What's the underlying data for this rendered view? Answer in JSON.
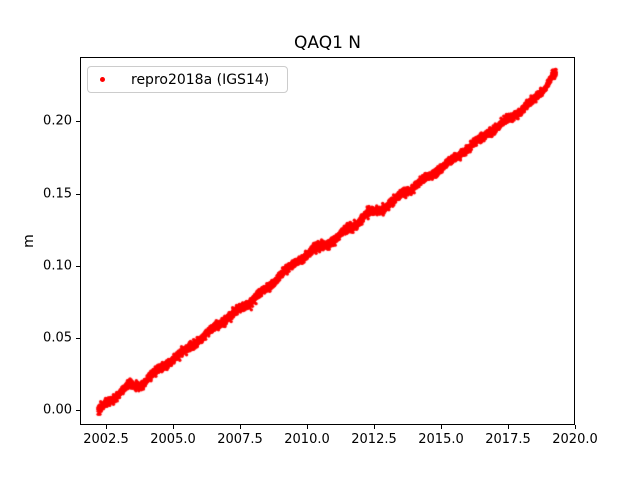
{
  "window": {
    "background": "#ffffff"
  },
  "title": "QAQ1 N",
  "ylabel": "m",
  "colors": {
    "series": "#ff0000",
    "frame": "#000000",
    "text": "#000000",
    "legend_border": "#cccccc",
    "legend_background": "#ffffff"
  },
  "legend": {
    "position": "upper left",
    "entries": [
      {
        "label": "repro2018a (IGS14)",
        "marker": "red-dot",
        "color": "#ff0000"
      }
    ]
  },
  "chart_data": {
    "type": "scatter",
    "title": "QAQ1 N",
    "xlabel": "",
    "ylabel": "m",
    "grid": false,
    "legend_position": "upper left",
    "xlim": [
      2001.53,
      2020.0
    ],
    "ylim": [
      -0.0103,
      0.2445
    ],
    "x_ticks": [
      2002.5,
      2005.0,
      2007.5,
      2010.0,
      2012.5,
      2015.0,
      2017.5,
      2020.0
    ],
    "x_tick_labels": [
      "2002.5",
      "2005.0",
      "2007.5",
      "2010.0",
      "2012.5",
      "2015.0",
      "2017.5",
      "2020.0"
    ],
    "y_ticks": [
      0.0,
      0.05,
      0.1,
      0.15,
      0.2
    ],
    "y_tick_labels": [
      "0.00",
      "0.05",
      "0.10",
      "0.15",
      "0.20"
    ],
    "series": [
      {
        "name": "repro2018a (IGS14)",
        "color": "#ff0000",
        "marker": "point",
        "marker_radius_px": 1.7,
        "x_start": 2002.2,
        "x_end": 2019.3,
        "points_per_year": 365,
        "noise_sigma_m": 0.0013,
        "outlier_fraction": 0.008,
        "annual_wiggle_amp_m": 0.0009,
        "trend_rate_m_per_yr": 0.0136,
        "trend_anchors": [
          [
            2002.2,
            0.0
          ],
          [
            2002.5,
            0.004
          ],
          [
            2002.8,
            0.009
          ],
          [
            2003.1,
            0.0135
          ],
          [
            2003.4,
            0.0175
          ],
          [
            2003.6,
            0.016
          ],
          [
            2003.9,
            0.019
          ],
          [
            2004.2,
            0.0245
          ],
          [
            2004.6,
            0.0295
          ],
          [
            2005.0,
            0.0355
          ],
          [
            2005.4,
            0.04
          ],
          [
            2005.8,
            0.0465
          ],
          [
            2006.2,
            0.0515
          ],
          [
            2006.6,
            0.058
          ],
          [
            2007.0,
            0.0635
          ],
          [
            2007.4,
            0.0685
          ],
          [
            2007.8,
            0.074
          ],
          [
            2008.2,
            0.08
          ],
          [
            2008.6,
            0.0855
          ],
          [
            2009.0,
            0.094
          ],
          [
            2009.5,
            0.101
          ],
          [
            2010.0,
            0.108
          ],
          [
            2010.3,
            0.112
          ],
          [
            2010.7,
            0.1145
          ],
          [
            2011.0,
            0.118
          ],
          [
            2011.4,
            0.1235
          ],
          [
            2011.8,
            0.1285
          ],
          [
            2012.2,
            0.1355
          ],
          [
            2012.5,
            0.1375
          ],
          [
            2012.8,
            0.139
          ],
          [
            2013.2,
            0.1445
          ],
          [
            2013.6,
            0.15
          ],
          [
            2014.0,
            0.155
          ],
          [
            2014.4,
            0.16
          ],
          [
            2014.8,
            0.165
          ],
          [
            2015.2,
            0.17
          ],
          [
            2015.6,
            0.1755
          ],
          [
            2016.0,
            0.1815
          ],
          [
            2016.4,
            0.1865
          ],
          [
            2016.8,
            0.1925
          ],
          [
            2017.2,
            0.197
          ],
          [
            2017.6,
            0.2025
          ],
          [
            2018.0,
            0.208
          ],
          [
            2018.4,
            0.2135
          ],
          [
            2018.8,
            0.2215
          ],
          [
            2019.0,
            0.2265
          ],
          [
            2019.1,
            0.2305
          ],
          [
            2019.2,
            0.2325
          ],
          [
            2019.3,
            0.233
          ]
        ]
      }
    ]
  }
}
